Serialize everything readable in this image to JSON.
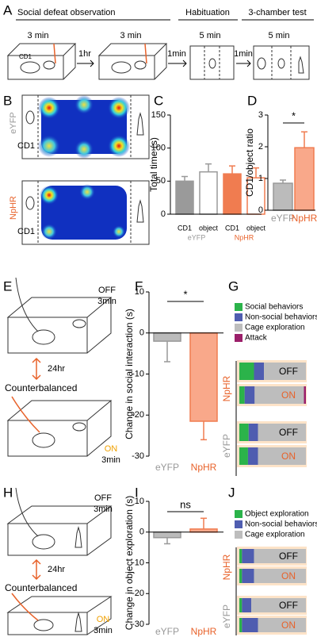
{
  "panels": {
    "A": {
      "letter": "A",
      "title1": "Social defeat observation",
      "title2": "Habituation",
      "title3": "3-chamber test",
      "t1": "3 min",
      "t2": "3 min",
      "t3": "5 min",
      "t4": "5 min",
      "a1": "1hr",
      "a2": "1min",
      "a3": "1min",
      "cd1": "CD1"
    },
    "B": {
      "letter": "B",
      "eyfp": "eYFP",
      "nphr": "NpHR",
      "cd1a": "CD1",
      "cd1b": "CD1"
    },
    "C": {
      "letter": "C"
    },
    "D": {
      "letter": "D"
    },
    "E": {
      "letter": "E",
      "off": "OFF",
      "t1": "3min",
      "gap": "24hr",
      "cb": "Counterbalanced",
      "on": "ON",
      "t2": "3min"
    },
    "F": {
      "letter": "F"
    },
    "G": {
      "letter": "G"
    },
    "H": {
      "letter": "H",
      "off": "OFF",
      "t1": "3min",
      "gap": "24hr",
      "cb": "Counterbalanced",
      "on": "ON",
      "t2": "3min"
    },
    "I": {
      "letter": "I"
    },
    "J": {
      "letter": "J"
    }
  },
  "chart_data": [
    {
      "type": "bar",
      "ylabel": "Total time (s)",
      "categories": [
        "CD1",
        "object",
        "CD1",
        "object"
      ],
      "groups": [
        "eYFP",
        "NpHR"
      ],
      "group_colors": [
        "#999999",
        "#e8622a"
      ],
      "values": [
        50,
        64,
        61,
        55
      ],
      "errors": [
        7,
        12,
        12,
        15
      ],
      "colors": [
        "#9a9a9a",
        "#ffffff",
        "#f07c50",
        "#ffffff"
      ],
      "edge_colors": [
        "#9a9a9a",
        "#9a9a9a",
        "#f07c50",
        "#f07c50"
      ],
      "ylim": [
        0,
        150
      ],
      "yticks": [
        0,
        50,
        100,
        150
      ]
    },
    {
      "type": "bar",
      "ylabel": "CD1/object ratio",
      "categories": [
        "eYFP",
        "NpHR"
      ],
      "category_colors": [
        "#999999",
        "#e8622a"
      ],
      "values": [
        0.85,
        1.97
      ],
      "errors": [
        0.1,
        0.5
      ],
      "colors": [
        "#bbbbbb",
        "#f9a88a"
      ],
      "edge_colors": [
        "#999999",
        "#f07c50"
      ],
      "ylim": [
        0,
        3
      ],
      "yticks": [
        0,
        1,
        2,
        3
      ],
      "significance": "*"
    },
    {
      "type": "bar",
      "ylabel": "Change in social interaction (s)",
      "categories": [
        "eYFP",
        "NpHR"
      ],
      "category_colors": [
        "#999999",
        "#e8622a"
      ],
      "values": [
        -2,
        -21.5
      ],
      "errors": [
        5,
        4.5
      ],
      "colors": [
        "#bbbbbb",
        "#f9a88a"
      ],
      "edge_colors": [
        "#999999",
        "#f07c50"
      ],
      "ylim": [
        -30,
        10
      ],
      "yticks": [
        -30,
        -20,
        -10,
        0,
        10
      ],
      "significance": "*"
    },
    {
      "type": "stacked-hbar",
      "rows": [
        "OFF",
        "ON",
        "OFF",
        "ON"
      ],
      "row_colors": [
        "#000000",
        "#e8622a",
        "#000000",
        "#e8622a"
      ],
      "groups": [
        "NpHR",
        "eYFP"
      ],
      "group_colors": [
        "#e8622a",
        "#999999"
      ],
      "xlim": [
        0,
        100
      ],
      "series": [
        {
          "name": "Social behaviors",
          "color": "#2bb34a",
          "values": [
            22,
            8,
            14,
            13
          ]
        },
        {
          "name": "Non-social behaviors",
          "color": "#4f5db0",
          "values": [
            15,
            15,
            14,
            15
          ]
        },
        {
          "name": "Cage exploration",
          "color": "#bdbdbd",
          "values": [
            63,
            74,
            72,
            72
          ]
        },
        {
          "name": "Attack",
          "color": "#9b1f6a",
          "values": [
            0,
            3,
            0,
            0
          ]
        }
      ]
    },
    {
      "type": "bar",
      "ylabel": "Change in object exploration (s)",
      "categories": [
        "eYFP",
        "NpHR"
      ],
      "category_colors": [
        "#999999",
        "#e8622a"
      ],
      "values": [
        -1.8,
        1
      ],
      "errors": [
        2,
        3.5
      ],
      "colors": [
        "#bbbbbb",
        "#f9a88a"
      ],
      "edge_colors": [
        "#999999",
        "#f07c50"
      ],
      "ylim": [
        -30,
        10
      ],
      "yticks": [
        -30,
        -20,
        -10,
        0,
        10
      ],
      "significance": "ns"
    },
    {
      "type": "stacked-hbar",
      "rows": [
        "OFF",
        "ON",
        "OFF",
        "ON"
      ],
      "row_colors": [
        "#000000",
        "#e8622a",
        "#000000",
        "#e8622a"
      ],
      "groups": [
        "NpHR",
        "eYFP"
      ],
      "group_colors": [
        "#e8622a",
        "#999999"
      ],
      "xlim": [
        0,
        100
      ],
      "series": [
        {
          "name": "Object exploration",
          "color": "#2bb34a",
          "values": [
            4,
            4,
            4,
            4
          ]
        },
        {
          "name": "Non-social behaviors",
          "color": "#4f5db0",
          "values": [
            18,
            18,
            14,
            24
          ]
        },
        {
          "name": "Cage exploration",
          "color": "#bdbdbd",
          "values": [
            78,
            78,
            82,
            72
          ]
        }
      ]
    }
  ]
}
